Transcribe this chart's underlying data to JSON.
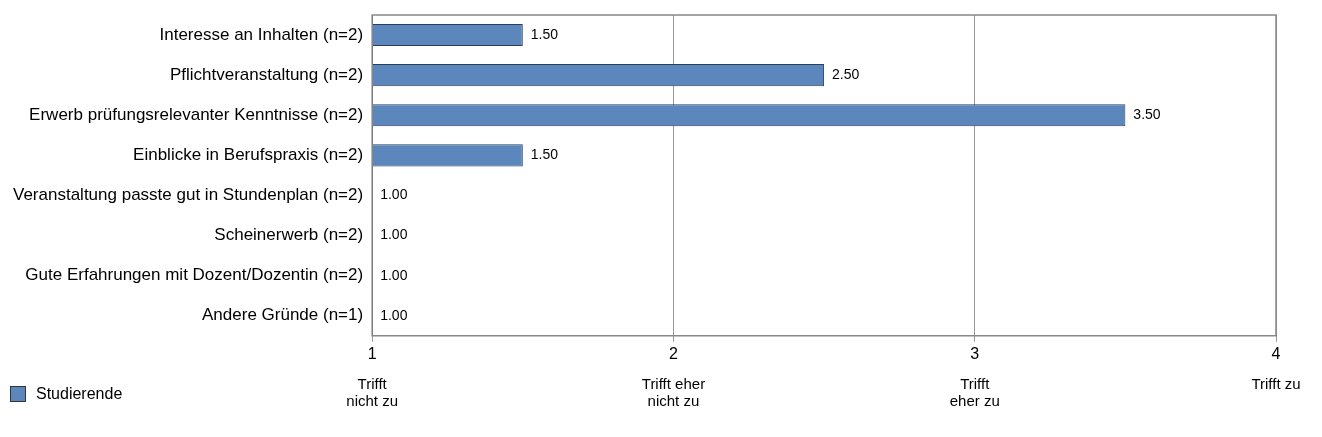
{
  "chart_data": {
    "type": "bar",
    "orientation": "horizontal",
    "categories": [
      "Interesse an Inhalten (n=2)",
      "Pflichtveranstaltung (n=2)",
      "Erwerb prüfungsrelevanter Kenntnisse (n=2)",
      "Einblicke in Berufspraxis (n=2)",
      "Veranstaltung passte gut in Stundenplan (n=2)",
      "Scheinerwerb (n=2)",
      "Gute Erfahrungen mit Dozent/Dozentin (n=2)",
      "Andere Gründe (n=1)"
    ],
    "series": [
      {
        "name": "Studierende",
        "color": "#5b87bc",
        "values": [
          1.5,
          2.5,
          3.5,
          1.5,
          1.0,
          1.0,
          1.0,
          1.0
        ],
        "value_labels": [
          "1.50",
          "2.50",
          "3.50",
          "1.50",
          "1.00",
          "1.00",
          "1.00",
          "1.00"
        ]
      }
    ],
    "xlim": [
      1,
      4
    ],
    "xticks": [
      1,
      2,
      3,
      4
    ],
    "annotations": [
      "Trifft\nnicht zu",
      "Trifft eher\nnicht zu",
      "Trifft\neher zu",
      "Trifft zu"
    ],
    "grid": "x",
    "legend": "bottom left"
  }
}
